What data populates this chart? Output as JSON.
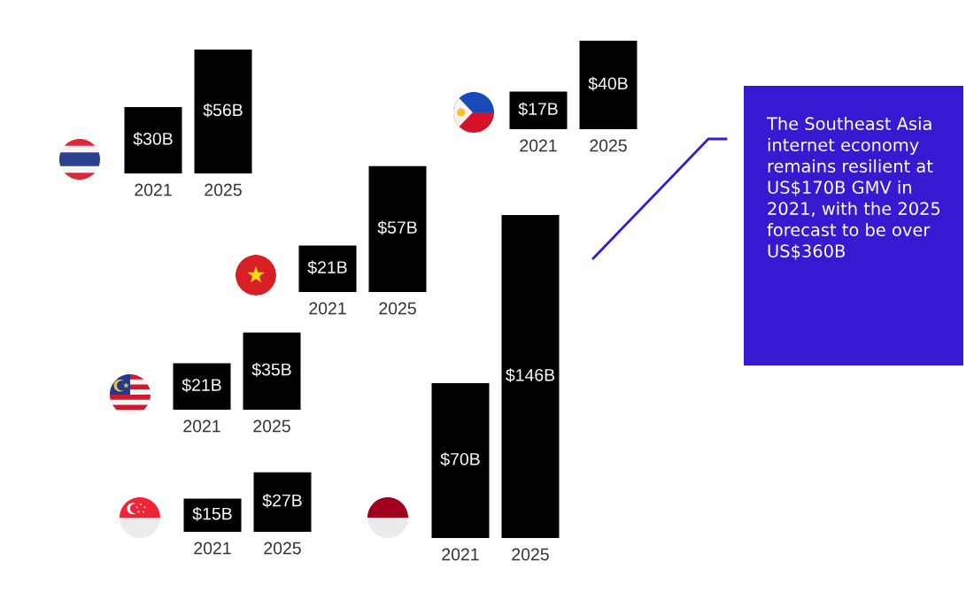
{
  "chart_data": [
    {
      "type": "bar",
      "categories": [
        "2021",
        "2025"
      ],
      "values": [
        30,
        56
      ],
      "value_labels": [
        "$30B",
        "$56B"
      ],
      "color": "#000000",
      "tick_labels": "x"
    },
    {
      "type": "bar",
      "categories": [
        "2021",
        "2025"
      ],
      "values": [
        17,
        40
      ],
      "value_labels": [
        "$17B",
        "$40B"
      ],
      "color": "#000000",
      "tick_labels": "x"
    },
    {
      "type": "bar",
      "categories": [
        "2021",
        "2025"
      ],
      "values": [
        21,
        57
      ],
      "value_labels": [
        "$21B",
        "$57B"
      ],
      "color": "#000000",
      "tick_labels": "x"
    },
    {
      "type": "bar",
      "categories": [
        "2021",
        "2025"
      ],
      "values": [
        21,
        35
      ],
      "value_labels": [
        "$21B",
        "$35B"
      ],
      "color": "#000000",
      "tick_labels": "x"
    },
    {
      "type": "bar",
      "categories": [
        "2021",
        "2025"
      ],
      "values": [
        15,
        27
      ],
      "value_labels": [
        "$15B",
        "$27B"
      ],
      "color": "#000000",
      "tick_labels": "x"
    },
    {
      "type": "bar",
      "categories": [
        "2021",
        "2025"
      ],
      "values": [
        70,
        146
      ],
      "value_labels": [
        "$70B",
        "$146B"
      ],
      "color": "#000000",
      "tick_labels": "x"
    },
    {
      "type": "other",
      "title": "The Southeast Asia internet economy remains resilient at US$170B GMV in 2021, with the 2025 forecast to be over US$360B",
      "color": "#3719d1"
    }
  ]
}
